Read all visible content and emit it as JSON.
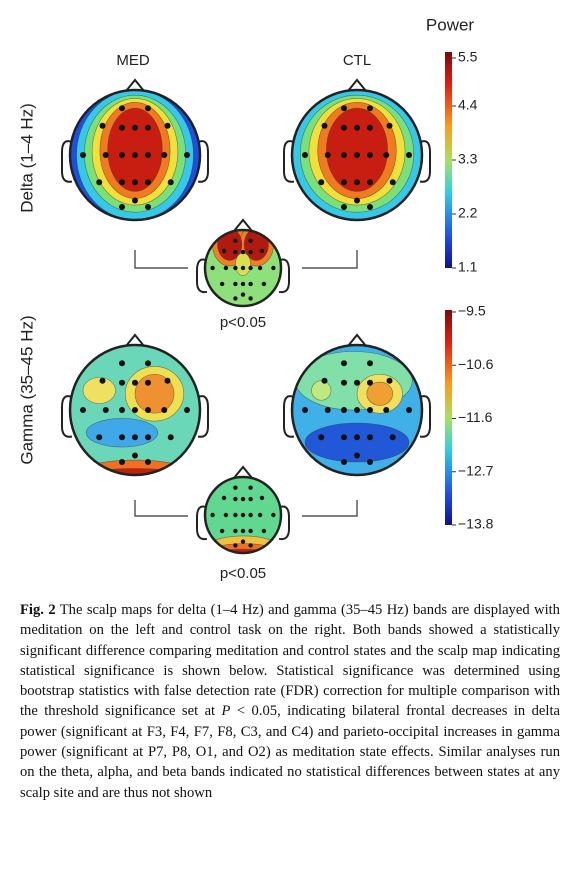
{
  "figure": {
    "power_label": "Power",
    "columns": [
      "MED",
      "CTL"
    ],
    "rows": [
      {
        "label": "Delta (1–4 Hz)",
        "p_label": "p<0.05",
        "colorbar_ticks": [
          "5.5",
          "4.4",
          "3.3",
          "2.2",
          "1.1"
        ]
      },
      {
        "label": "Gamma (35–45 Hz)",
        "p_label": "p<0.05",
        "colorbar_ticks": [
          "−9.5",
          "−10.6",
          "−11.6",
          "−12.7",
          "−13.8"
        ]
      }
    ]
  },
  "caption": {
    "label": "Fig. 2",
    "text_1": " The scalp maps for delta (1–4 Hz) and gamma (35–45 Hz) bands are displayed with meditation on the left and control task on the right. Both bands showed a statistically significant difference comparing meditation and control states and the scalp map indicating statistical significance is shown below. Statistical significance was determined using bootstrap statistics with false detection rate (FDR) correction for multiple comparison with the threshold significance set at ",
    "italic": "P",
    "text_2": " < 0.05, indicating bilateral frontal decreases in delta power (significant at F3, F4, F7, F8, C3, and C4) and parieto-occipital increases in gamma power (significant at P7, P8, O1, and O2) as meditation state effects. Similar analyses run on the theta, alpha, and beta bands indicated no statistical differences between states at any scalp site and are thus not shown"
  }
}
